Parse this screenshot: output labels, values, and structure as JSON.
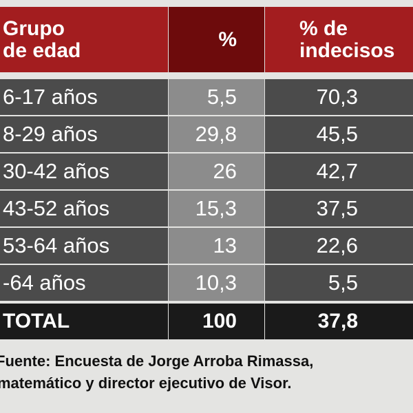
{
  "table": {
    "header": [
      [
        "Grupo",
        "de edad"
      ],
      [
        "%"
      ],
      [
        "% de",
        "indecisos"
      ]
    ],
    "rows": [
      [
        "6-17 años",
        "5,5",
        "70,3"
      ],
      [
        "8-29 años",
        "29,8",
        "45,5"
      ],
      [
        "30-42 años",
        "26",
        "42,7"
      ],
      [
        "43-52 años",
        "15,3",
        "37,5"
      ],
      [
        "53-64 años",
        "13",
        "22,6"
      ],
      [
        "-64 años",
        "10,3",
        "5,5"
      ]
    ],
    "total": [
      "TOTAL",
      "100",
      "37,8"
    ]
  },
  "footer": [
    "Fuente: Encuesta de Jorge Arroba Rimassa,",
    "matemático y director ejecutivo de Visor."
  ]
}
